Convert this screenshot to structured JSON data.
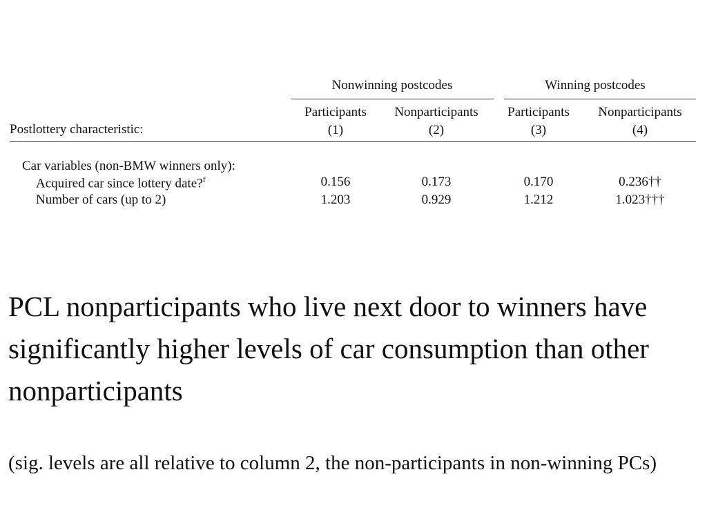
{
  "table": {
    "column_groups": [
      "Nonwinning postcodes",
      "Winning postcodes"
    ],
    "row_header": "Postlottery characteristic:",
    "columns": [
      {
        "name": "Participants",
        "number": "(1)"
      },
      {
        "name": "Nonparticipants",
        "number": "(2)"
      },
      {
        "name": "Participants",
        "number": "(3)"
      },
      {
        "name": "Nonparticipants",
        "number": "(4)"
      }
    ],
    "section": "Car variables (non-BMW winners only):",
    "rows": [
      {
        "label": "Acquired car since lottery date?",
        "footnote": "f",
        "values": [
          "0.156",
          "0.173",
          "0.170",
          "0.236††"
        ]
      },
      {
        "label": "Number of cars (up to 2)",
        "values": [
          "1.203",
          "0.929",
          "1.212",
          "1.023†††"
        ]
      }
    ]
  },
  "text": {
    "heading": "PCL nonparticipants who live next door to winners have significantly higher levels of car consumption than other nonparticipants",
    "note": "(sig. levels are all relative to column 2, the non-participants in non-winning PCs)"
  }
}
